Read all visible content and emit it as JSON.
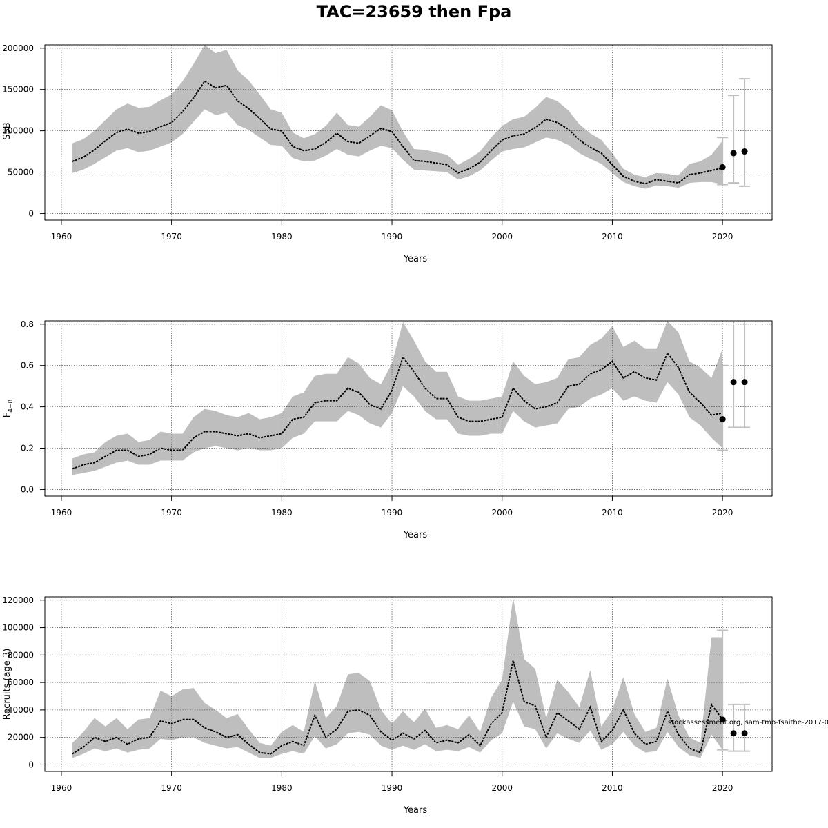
{
  "title": "TAC=23659 then Fpa",
  "watermark": "stockassessment.org, sam-tmb-fsaithe-2017-0",
  "colors": {
    "band": "#bebebe",
    "line": "#000000",
    "error_bar": "#bebebe",
    "grid": "#555555"
  },
  "chart_data": [
    {
      "type": "line",
      "ylabel": "SSB",
      "xlabel": "Years",
      "xlim": [
        1960,
        2022
      ],
      "ylim": [
        0,
        200000
      ],
      "xticks": [
        1960,
        1970,
        1980,
        1990,
        2000,
        2010,
        2020
      ],
      "yticks": [
        0,
        50000,
        100000,
        150000,
        200000
      ],
      "grid": true,
      "x": [
        1961,
        1962,
        1963,
        1964,
        1965,
        1966,
        1967,
        1968,
        1969,
        1970,
        1971,
        1972,
        1973,
        1974,
        1975,
        1976,
        1977,
        1978,
        1979,
        1980,
        1981,
        1982,
        1983,
        1984,
        1985,
        1986,
        1987,
        1988,
        1989,
        1990,
        1991,
        1992,
        1993,
        1994,
        1995,
        1996,
        1997,
        1998,
        1999,
        2000,
        2001,
        2002,
        2003,
        2004,
        2005,
        2006,
        2007,
        2008,
        2009,
        2010,
        2011,
        2012,
        2013,
        2014,
        2015,
        2016,
        2017,
        2018,
        2019,
        2020
      ],
      "estimate": [
        63000,
        68000,
        77000,
        88000,
        98000,
        102000,
        97000,
        99000,
        105000,
        110000,
        123000,
        140000,
        160000,
        152000,
        155000,
        136000,
        127000,
        115000,
        102000,
        100000,
        81000,
        76000,
        78000,
        86000,
        97000,
        87000,
        85000,
        94000,
        103000,
        99000,
        81000,
        64000,
        63000,
        61000,
        59000,
        49000,
        54000,
        62000,
        76000,
        89000,
        94000,
        96000,
        104000,
        114000,
        110000,
        102000,
        89000,
        80000,
        73000,
        59000,
        45000,
        39000,
        36000,
        41000,
        39000,
        37000,
        47000,
        49000,
        52000,
        55000
      ],
      "lower": [
        49000,
        53000,
        60000,
        68000,
        76000,
        79000,
        74000,
        76000,
        81000,
        86000,
        96000,
        111000,
        126000,
        119000,
        122000,
        107000,
        101000,
        92000,
        83000,
        82000,
        67000,
        63000,
        64000,
        70000,
        78000,
        71000,
        69000,
        76000,
        82000,
        79000,
        65000,
        53000,
        52000,
        51000,
        50000,
        41000,
        45000,
        52000,
        64000,
        75000,
        78000,
        80000,
        86000,
        92000,
        89000,
        83000,
        73000,
        66000,
        60000,
        49000,
        38000,
        33000,
        30000,
        34000,
        33000,
        31000,
        37000,
        38000,
        38000,
        35000
      ],
      "upper": [
        85000,
        90000,
        100000,
        113000,
        126000,
        133000,
        128000,
        129000,
        137000,
        144000,
        160000,
        181000,
        205000,
        194000,
        198000,
        173000,
        161000,
        144000,
        126000,
        122000,
        98000,
        91000,
        96000,
        106000,
        122000,
        107000,
        105000,
        117000,
        131000,
        125000,
        99000,
        78000,
        77000,
        74000,
        71000,
        59000,
        66000,
        75000,
        92000,
        106000,
        114000,
        117000,
        128000,
        141000,
        136000,
        125000,
        108000,
        97000,
        89000,
        73000,
        54000,
        47000,
        44000,
        49000,
        48000,
        46000,
        60000,
        63000,
        71000,
        88000
      ],
      "forecast_points": [
        {
          "x": 2020,
          "y": 56000
        },
        {
          "x": 2021,
          "y": 73000
        },
        {
          "x": 2022,
          "y": 75000
        }
      ],
      "forecast_bars": [
        {
          "x": 2020,
          "low": 35000,
          "high": 92000
        },
        {
          "x": 2021,
          "low": 37000,
          "high": 143000
        },
        {
          "x": 2022,
          "low": 33000,
          "high": 163000
        }
      ]
    },
    {
      "type": "line",
      "ylabel": "F4-8",
      "xlabel": "Years",
      "xlim": [
        1960,
        2022
      ],
      "ylim": [
        0,
        0.8
      ],
      "xticks": [
        1960,
        1970,
        1980,
        1990,
        2000,
        2010,
        2020
      ],
      "yticks": [
        0.0,
        0.2,
        0.4,
        0.6,
        0.8
      ],
      "ytick_labels": [
        "0.0",
        "0.2",
        "0.4",
        "0.6",
        "0.8"
      ],
      "grid": true,
      "x": [
        1961,
        1962,
        1963,
        1964,
        1965,
        1966,
        1967,
        1968,
        1969,
        1970,
        1971,
        1972,
        1973,
        1974,
        1975,
        1976,
        1977,
        1978,
        1979,
        1980,
        1981,
        1982,
        1983,
        1984,
        1985,
        1986,
        1987,
        1988,
        1989,
        1990,
        1991,
        1992,
        1993,
        1994,
        1995,
        1996,
        1997,
        1998,
        1999,
        2000,
        2001,
        2002,
        2003,
        2004,
        2005,
        2006,
        2007,
        2008,
        2009,
        2010,
        2011,
        2012,
        2013,
        2014,
        2015,
        2016,
        2017,
        2018,
        2019,
        2020
      ],
      "estimate": [
        0.1,
        0.12,
        0.13,
        0.16,
        0.19,
        0.19,
        0.16,
        0.17,
        0.2,
        0.19,
        0.19,
        0.25,
        0.28,
        0.28,
        0.27,
        0.26,
        0.27,
        0.25,
        0.26,
        0.27,
        0.34,
        0.35,
        0.42,
        0.43,
        0.43,
        0.49,
        0.47,
        0.41,
        0.39,
        0.48,
        0.64,
        0.57,
        0.49,
        0.44,
        0.44,
        0.35,
        0.33,
        0.33,
        0.34,
        0.35,
        0.49,
        0.43,
        0.39,
        0.4,
        0.42,
        0.5,
        0.51,
        0.56,
        0.58,
        0.62,
        0.54,
        0.57,
        0.54,
        0.53,
        0.66,
        0.59,
        0.47,
        0.42,
        0.36,
        0.37
      ],
      "lower": [
        0.07,
        0.08,
        0.09,
        0.11,
        0.13,
        0.14,
        0.12,
        0.12,
        0.14,
        0.14,
        0.14,
        0.18,
        0.2,
        0.21,
        0.2,
        0.19,
        0.2,
        0.19,
        0.19,
        0.2,
        0.25,
        0.27,
        0.33,
        0.33,
        0.33,
        0.38,
        0.36,
        0.32,
        0.3,
        0.37,
        0.5,
        0.45,
        0.38,
        0.34,
        0.34,
        0.27,
        0.26,
        0.26,
        0.27,
        0.27,
        0.38,
        0.33,
        0.3,
        0.31,
        0.32,
        0.39,
        0.4,
        0.44,
        0.46,
        0.49,
        0.43,
        0.45,
        0.43,
        0.42,
        0.52,
        0.46,
        0.35,
        0.31,
        0.25,
        0.2
      ],
      "upper": [
        0.15,
        0.17,
        0.18,
        0.23,
        0.26,
        0.27,
        0.23,
        0.24,
        0.28,
        0.27,
        0.27,
        0.35,
        0.39,
        0.38,
        0.36,
        0.35,
        0.37,
        0.34,
        0.35,
        0.37,
        0.45,
        0.47,
        0.55,
        0.56,
        0.56,
        0.64,
        0.61,
        0.54,
        0.51,
        0.61,
        0.81,
        0.72,
        0.62,
        0.57,
        0.57,
        0.45,
        0.43,
        0.43,
        0.44,
        0.45,
        0.62,
        0.55,
        0.51,
        0.52,
        0.54,
        0.63,
        0.64,
        0.7,
        0.73,
        0.79,
        0.69,
        0.72,
        0.68,
        0.68,
        0.84,
        0.76,
        0.62,
        0.59,
        0.54,
        0.68
      ],
      "forecast_points": [
        {
          "x": 2020,
          "y": 0.34
        },
        {
          "x": 2021,
          "y": 0.52
        },
        {
          "x": 2022,
          "y": 0.52
        }
      ],
      "forecast_bars": [
        {
          "x": 2020,
          "low": 0.19,
          "high": 0.6
        },
        {
          "x": 2021,
          "low": 0.3,
          "high": 0.9
        },
        {
          "x": 2022,
          "low": 0.3,
          "high": 0.9
        }
      ]
    },
    {
      "type": "line",
      "ylabel": "Recruits (age 3)",
      "xlabel": "Years",
      "xlim": [
        1960,
        2022
      ],
      "ylim": [
        0,
        120000
      ],
      "xticks": [
        1960,
        1970,
        1980,
        1990,
        2000,
        2010,
        2020
      ],
      "yticks": [
        0,
        20000,
        40000,
        60000,
        80000,
        100000,
        120000
      ],
      "grid": true,
      "x": [
        1961,
        1962,
        1963,
        1964,
        1965,
        1966,
        1967,
        1968,
        1969,
        1970,
        1971,
        1972,
        1973,
        1974,
        1975,
        1976,
        1977,
        1978,
        1979,
        1980,
        1981,
        1982,
        1983,
        1984,
        1985,
        1986,
        1987,
        1988,
        1989,
        1990,
        1991,
        1992,
        1993,
        1994,
        1995,
        1996,
        1997,
        1998,
        1999,
        2000,
        2001,
        2002,
        2003,
        2004,
        2005,
        2006,
        2007,
        2008,
        2009,
        2010,
        2011,
        2012,
        2013,
        2014,
        2015,
        2016,
        2017,
        2018,
        2019,
        2020
      ],
      "estimate": [
        8000,
        13000,
        20000,
        17000,
        20000,
        15000,
        19000,
        20000,
        32000,
        30000,
        33000,
        33000,
        27000,
        24000,
        20000,
        22000,
        15000,
        9000,
        8000,
        14000,
        17000,
        14000,
        36000,
        20000,
        26000,
        39000,
        40000,
        36000,
        24000,
        18000,
        23000,
        19000,
        25000,
        16000,
        18000,
        16000,
        22000,
        14000,
        30000,
        38000,
        76000,
        46000,
        43000,
        20000,
        38000,
        32000,
        26000,
        42000,
        17000,
        25000,
        40000,
        23000,
        15000,
        17000,
        39000,
        22000,
        12000,
        9000,
        44000,
        33000
      ],
      "lower": [
        5000,
        8000,
        12000,
        10000,
        12000,
        9000,
        11000,
        12000,
        19000,
        18000,
        20000,
        20000,
        16000,
        14000,
        12000,
        13000,
        9000,
        5000,
        5000,
        8000,
        10000,
        8000,
        21000,
        12000,
        15000,
        23000,
        24000,
        22000,
        14000,
        11000,
        14000,
        11000,
        15000,
        10000,
        11000,
        10000,
        13000,
        9000,
        18000,
        23000,
        46000,
        28000,
        26000,
        12000,
        23000,
        19000,
        16000,
        25000,
        11000,
        15000,
        24000,
        14000,
        9000,
        10000,
        24000,
        13000,
        7000,
        5000,
        22000,
        11000
      ],
      "upper": [
        16000,
        24000,
        34000,
        28000,
        34000,
        26000,
        33000,
        34000,
        54000,
        50000,
        55000,
        56000,
        45000,
        40000,
        34000,
        37000,
        26000,
        16000,
        14000,
        24000,
        29000,
        24000,
        61000,
        34000,
        43000,
        66000,
        67000,
        61000,
        40000,
        30000,
        39000,
        31000,
        41000,
        27000,
        29000,
        26000,
        36000,
        24000,
        49000,
        62000,
        122000,
        77000,
        70000,
        34000,
        62000,
        53000,
        42000,
        69000,
        28000,
        40000,
        64000,
        37000,
        24000,
        27000,
        63000,
        36000,
        20000,
        16000,
        93000,
        93000
      ],
      "forecast_points": [
        {
          "x": 2020,
          "y": 33000
        },
        {
          "x": 2021,
          "y": 23000
        },
        {
          "x": 2022,
          "y": 23000
        }
      ],
      "forecast_bars": [
        {
          "x": 2020,
          "low": 11000,
          "high": 98000
        },
        {
          "x": 2021,
          "low": 10000,
          "high": 44000
        },
        {
          "x": 2022,
          "low": 10000,
          "high": 44000
        }
      ]
    }
  ]
}
